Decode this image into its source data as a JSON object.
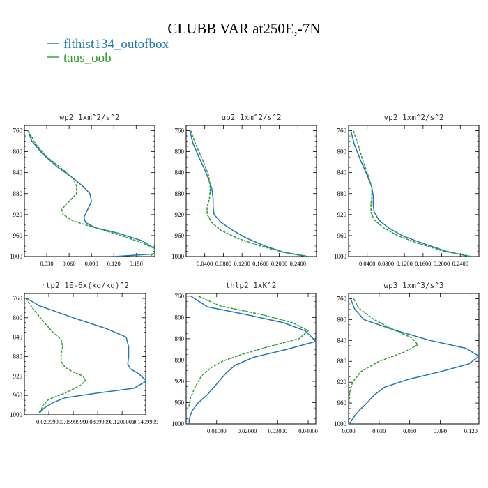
{
  "figure": {
    "title": "CLUBB VAR at250E,-7N",
    "legend": [
      {
        "label": "flthist134_outofbox",
        "color": "#1f77b4",
        "dash": false
      },
      {
        "label": "taus_oob",
        "color": "#2ca02c",
        "dash": true
      }
    ]
  },
  "chart_data": [
    {
      "type": "line",
      "title": "wp2  1xm^2/s^2",
      "xlim": [
        0.0,
        0.175
      ],
      "ylim": [
        750,
        1000
      ],
      "yticks": [
        760,
        800,
        840,
        880,
        920,
        960,
        1000
      ],
      "xticks": [
        0.03,
        0.06,
        0.09,
        0.12,
        0.15
      ],
      "xtick_labels": [
        "0.030",
        "0.060",
        "0.090",
        "0.120",
        "0.150"
      ],
      "series": [
        {
          "name": "flthist134_outofbox",
          "x": [
            0.005,
            0.01,
            0.025,
            0.045,
            0.065,
            0.08,
            0.088,
            0.09,
            0.085,
            0.08,
            0.082,
            0.095,
            0.125,
            0.158,
            0.175,
            0.175,
            0.12
          ],
          "y": [
            760,
            780,
            805,
            830,
            850,
            868,
            880,
            895,
            910,
            925,
            935,
            945,
            955,
            970,
            985,
            995,
            1000
          ]
        },
        {
          "name": "taus_oob",
          "x": [
            0.005,
            0.015,
            0.03,
            0.05,
            0.065,
            0.07,
            0.07,
            0.06,
            0.05,
            0.052,
            0.065,
            0.095,
            0.13,
            0.16,
            0.175,
            0.175,
            0.17
          ],
          "y": [
            760,
            785,
            810,
            832,
            850,
            865,
            880,
            895,
            910,
            920,
            932,
            945,
            960,
            975,
            985,
            993,
            998
          ]
        }
      ]
    },
    {
      "type": "line",
      "title": "up2  1xm^2/s^2",
      "xlim": [
        0.0,
        0.28
      ],
      "ylim": [
        750,
        1000
      ],
      "yticks": [
        760,
        800,
        840,
        880,
        920,
        960,
        1000
      ],
      "xticks": [
        0.04,
        0.08,
        0.12,
        0.16,
        0.2,
        0.24
      ],
      "xtick_labels": [
        "0.0400",
        "0.0800",
        "0.1200",
        "0.1600",
        "0.2000",
        "0.2400"
      ],
      "series": [
        {
          "name": "flthist134_outofbox",
          "x": [
            0.008,
            0.015,
            0.03,
            0.045,
            0.055,
            0.058,
            0.058,
            0.06,
            0.075,
            0.1,
            0.13,
            0.17,
            0.21,
            0.26
          ],
          "y": [
            760,
            785,
            815,
            845,
            870,
            890,
            905,
            920,
            935,
            950,
            965,
            980,
            992,
            1000
          ]
        },
        {
          "name": "taus_oob",
          "x": [
            0.01,
            0.02,
            0.035,
            0.048,
            0.052,
            0.05,
            0.045,
            0.045,
            0.055,
            0.075,
            0.11,
            0.16,
            0.21,
            0.265
          ],
          "y": [
            760,
            785,
            815,
            845,
            870,
            890,
            905,
            920,
            935,
            950,
            965,
            980,
            992,
            1000
          ]
        }
      ]
    },
    {
      "type": "line",
      "title": "vp2  1xm^2/s^2",
      "xlim": [
        0.0,
        0.28
      ],
      "ylim": [
        750,
        1000
      ],
      "yticks": [
        760,
        800,
        840,
        880,
        920,
        960,
        1000
      ],
      "xticks": [
        0.04,
        0.08,
        0.12,
        0.16,
        0.2,
        0.24
      ],
      "xtick_labels": [
        "0.0400",
        "0.0800",
        "0.1200",
        "0.1600",
        "0.2000",
        "0.2400"
      ],
      "series": [
        {
          "name": "flthist134_outofbox",
          "x": [
            0.005,
            0.012,
            0.025,
            0.04,
            0.05,
            0.053,
            0.053,
            0.055,
            0.065,
            0.085,
            0.115,
            0.16,
            0.21,
            0.26
          ],
          "y": [
            760,
            785,
            815,
            845,
            868,
            885,
            900,
            915,
            930,
            945,
            960,
            975,
            990,
            1000
          ]
        },
        {
          "name": "taus_oob",
          "x": [
            0.01,
            0.02,
            0.03,
            0.042,
            0.05,
            0.05,
            0.048,
            0.048,
            0.055,
            0.075,
            0.105,
            0.15,
            0.205,
            0.265
          ],
          "y": [
            760,
            785,
            815,
            845,
            868,
            885,
            900,
            915,
            930,
            945,
            960,
            975,
            990,
            1000
          ]
        }
      ]
    },
    {
      "type": "line",
      "title": "rtp2  1E-6x(kg/kg)^2",
      "xlim": [
        0.0,
        0.149
      ],
      "ylim": [
        750,
        1000
      ],
      "yticks": [
        760,
        800,
        840,
        880,
        920,
        960,
        1000
      ],
      "xticks": [
        0.03,
        0.06,
        0.09,
        0.12,
        0.149
      ],
      "xtick_labels": [
        "0.0299999",
        "0.0599999",
        "0.0899999",
        "0.1200000",
        "0.1499999"
      ],
      "series": [
        {
          "name": "flthist134_outofbox",
          "x": [
            0.003,
            0.018,
            0.06,
            0.1,
            0.125,
            0.128,
            0.128,
            0.127,
            0.13,
            0.14,
            0.15,
            0.135,
            0.09,
            0.05,
            0.035,
            0.025,
            0.018
          ],
          "y": [
            760,
            775,
            800,
            822,
            840,
            860,
            880,
            895,
            905,
            915,
            930,
            945,
            955,
            965,
            975,
            985,
            995
          ]
        },
        {
          "name": "taus_oob",
          "x": [
            0.002,
            0.01,
            0.022,
            0.035,
            0.045,
            0.047,
            0.045,
            0.045,
            0.05,
            0.06,
            0.072,
            0.075,
            0.068,
            0.05,
            0.03,
            0.022,
            0.02
          ],
          "y": [
            760,
            780,
            805,
            830,
            845,
            860,
            875,
            890,
            902,
            912,
            920,
            930,
            940,
            955,
            968,
            982,
            995
          ]
        }
      ]
    },
    {
      "type": "line",
      "title": "thlp2  1xK^2",
      "xlim": [
        0.0,
        0.0425
      ],
      "ylim": [
        755,
        1000
      ],
      "yticks": [
        760,
        800,
        840,
        880,
        920,
        960,
        1000
      ],
      "xticks": [
        0.01,
        0.02,
        0.03,
        0.04
      ],
      "xtick_labels": [
        "0.01000",
        "0.02000",
        "0.03000",
        "0.04000"
      ],
      "series": [
        {
          "name": "flthist134_outofbox",
          "x": [
            0.0015,
            0.007,
            0.02,
            0.032,
            0.039,
            0.0425,
            0.033,
            0.022,
            0.016,
            0.013,
            0.01,
            0.007,
            0.004,
            0.002,
            0.001,
            0.001
          ],
          "y": [
            760,
            780,
            795,
            810,
            825,
            845,
            860,
            875,
            890,
            905,
            925,
            945,
            960,
            975,
            990,
            1000
          ]
        },
        {
          "name": "taus_oob",
          "x": [
            0.004,
            0.011,
            0.025,
            0.035,
            0.04,
            0.037,
            0.027,
            0.018,
            0.012,
            0.008,
            0.005,
            0.003,
            0.0015,
            0.0008
          ],
          "y": [
            760,
            778,
            795,
            810,
            825,
            840,
            855,
            870,
            882,
            895,
            910,
            930,
            950,
            970
          ]
        }
      ]
    },
    {
      "type": "line",
      "title": "wp3  1xm^3/s^3",
      "xlim": [
        0.0,
        0.128
      ],
      "ylim": [
        750,
        1000
      ],
      "yticks": [
        760,
        800,
        840,
        880,
        920,
        960,
        1000
      ],
      "xticks": [
        0.0,
        0.03,
        0.06,
        0.09,
        0.12
      ],
      "xtick_labels": [
        "0.000",
        "0.030",
        "0.060",
        "0.090",
        "0.120"
      ],
      "series": [
        {
          "name": "flthist134_outofbox",
          "x": [
            0.002,
            0.006,
            0.015,
            0.045,
            0.08,
            0.115,
            0.128,
            0.118,
            0.09,
            0.058,
            0.035,
            0.025,
            0.018,
            0.01,
            0.004,
            0.001
          ],
          "y": [
            760,
            780,
            800,
            820,
            840,
            855,
            870,
            885,
            900,
            915,
            930,
            945,
            960,
            975,
            990,
            1000
          ]
        },
        {
          "name": "taus_oob",
          "x": [
            0.005,
            0.01,
            0.025,
            0.045,
            0.062,
            0.068,
            0.055,
            0.03,
            0.012,
            0.004,
            0.001,
            0.0005,
            0.0,
            0.0
          ],
          "y": [
            760,
            778,
            800,
            820,
            835,
            848,
            862,
            880,
            900,
            920,
            940,
            960,
            980,
            1000
          ]
        }
      ]
    }
  ]
}
